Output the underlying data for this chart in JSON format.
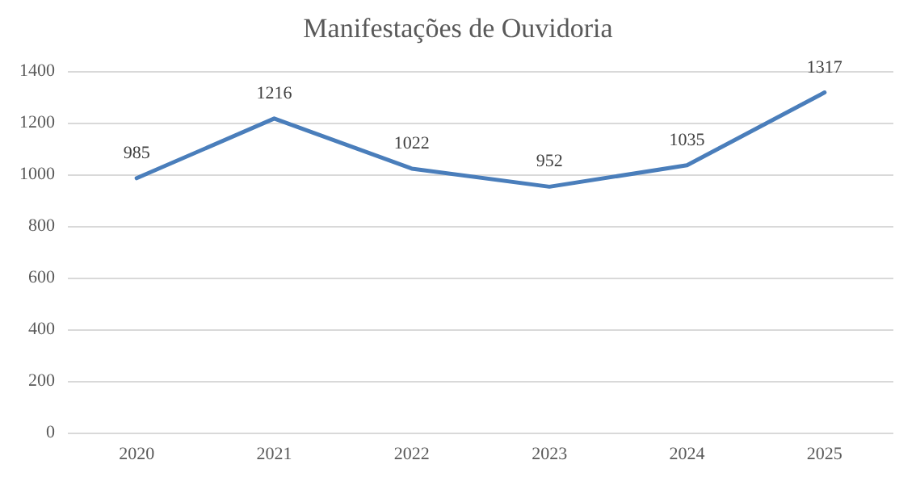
{
  "chart_data": {
    "type": "line",
    "title": "Manifestações de Ouvidoria",
    "categories": [
      "2020",
      "2021",
      "2022",
      "2023",
      "2024",
      "2025"
    ],
    "series": [
      {
        "color": "#4a7ebb",
        "values": [
          985,
          1216,
          1022,
          952,
          1035,
          1317
        ]
      }
    ],
    "ylim": [
      0,
      1400
    ],
    "yticks": [
      0,
      200,
      400,
      600,
      800,
      1000,
      1200,
      1400
    ],
    "grid": "y",
    "data_labels": true,
    "marker": "none",
    "line_style": "solid"
  }
}
